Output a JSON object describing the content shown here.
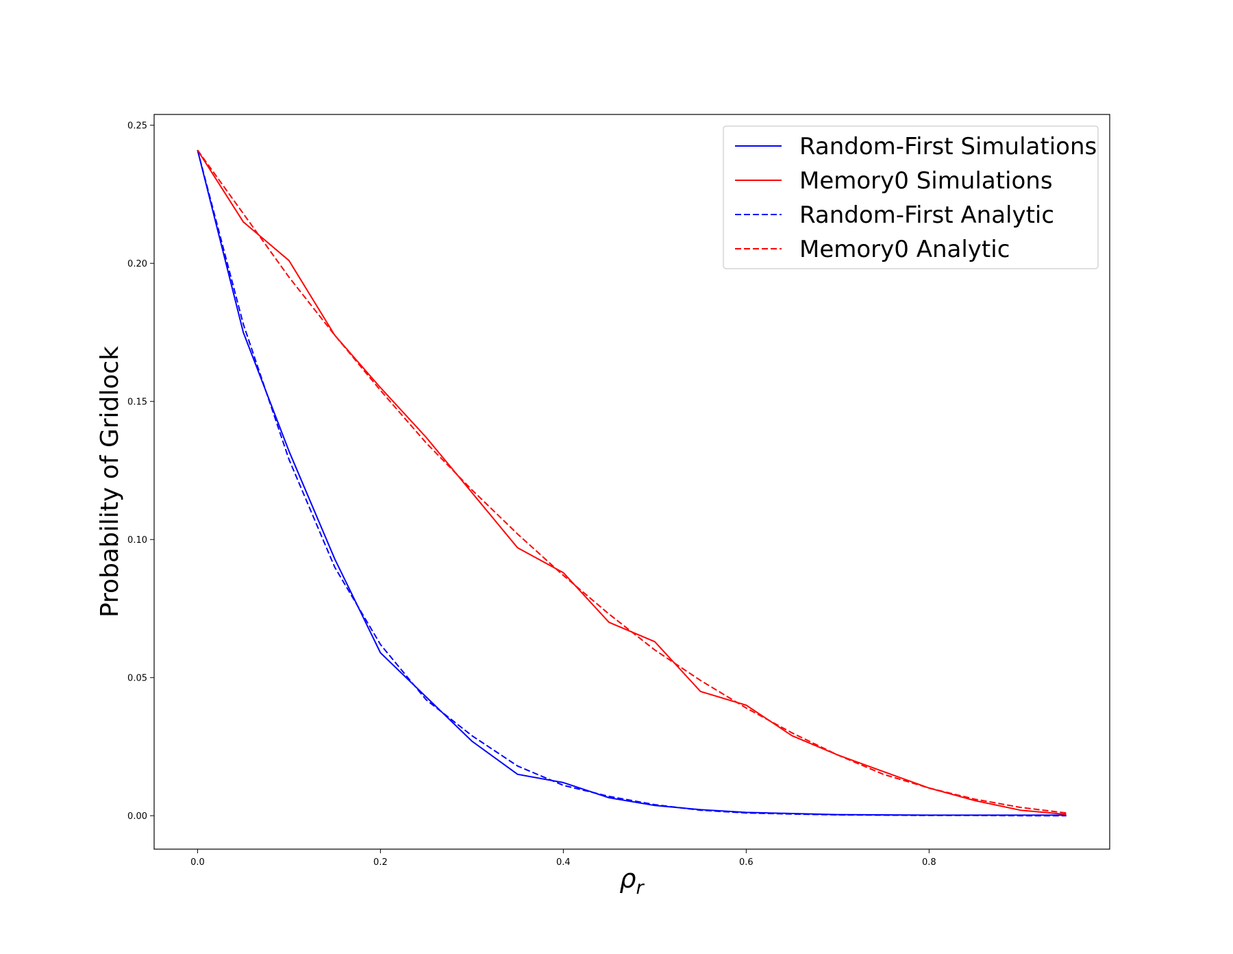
{
  "chart_data": {
    "type": "line",
    "title": "",
    "xlabel": "ρ",
    "xlabel_sub": "r",
    "ylabel": "Probability of Gridlock",
    "xlim": [
      -0.0475,
      0.9975
    ],
    "ylim": [
      -0.0121,
      0.2539
    ],
    "xticks": [
      0.0,
      0.2,
      0.4,
      0.6,
      0.8
    ],
    "xtick_labels": [
      "0.0",
      "0.2",
      "0.4",
      "0.6",
      "0.8"
    ],
    "yticks": [
      0.0,
      0.05,
      0.1,
      0.15,
      0.2,
      0.25
    ],
    "ytick_labels": [
      "0.00",
      "0.05",
      "0.10",
      "0.15",
      "0.20",
      "0.25"
    ],
    "grid": false,
    "legend_position": "top-right",
    "x": [
      0.0,
      0.05,
      0.1,
      0.15,
      0.2,
      0.25,
      0.3,
      0.35,
      0.4,
      0.45,
      0.5,
      0.55,
      0.6,
      0.65,
      0.7,
      0.75,
      0.8,
      0.85,
      0.9,
      0.95
    ],
    "series": [
      {
        "name": "Random-First Simulations",
        "color": "#0000ff",
        "dash": "solid",
        "values": [
          0.241,
          0.175,
          0.132,
          0.093,
          0.059,
          0.043,
          0.027,
          0.015,
          0.012,
          0.0065,
          0.0037,
          0.0022,
          0.0012,
          0.0008,
          0.0004,
          0.0003,
          0.0002,
          0.0002,
          0.0002,
          0.0002
        ]
      },
      {
        "name": "Memory0 Simulations",
        "color": "#ff0000",
        "dash": "solid",
        "values": [
          0.241,
          0.215,
          0.201,
          0.174,
          0.155,
          0.137,
          0.117,
          0.097,
          0.088,
          0.07,
          0.063,
          0.045,
          0.04,
          0.029,
          0.022,
          0.016,
          0.01,
          0.0055,
          0.002,
          0.0005
        ]
      },
      {
        "name": "Random-First Analytic",
        "color": "#0000ff",
        "dash": "dashed",
        "values": [
          0.241,
          0.178,
          0.129,
          0.09,
          0.062,
          0.042,
          0.029,
          0.018,
          0.011,
          0.007,
          0.004,
          0.002,
          0.001,
          0.0006,
          0.0003,
          0.0002,
          0.0001,
          0.0001,
          0.0,
          0.0
        ]
      },
      {
        "name": "Memory0 Analytic",
        "color": "#ff0000",
        "dash": "dashed",
        "values": [
          0.241,
          0.218,
          0.195,
          0.174,
          0.154,
          0.135,
          0.118,
          0.102,
          0.087,
          0.073,
          0.06,
          0.049,
          0.039,
          0.03,
          0.022,
          0.015,
          0.01,
          0.006,
          0.003,
          0.001
        ]
      }
    ]
  }
}
